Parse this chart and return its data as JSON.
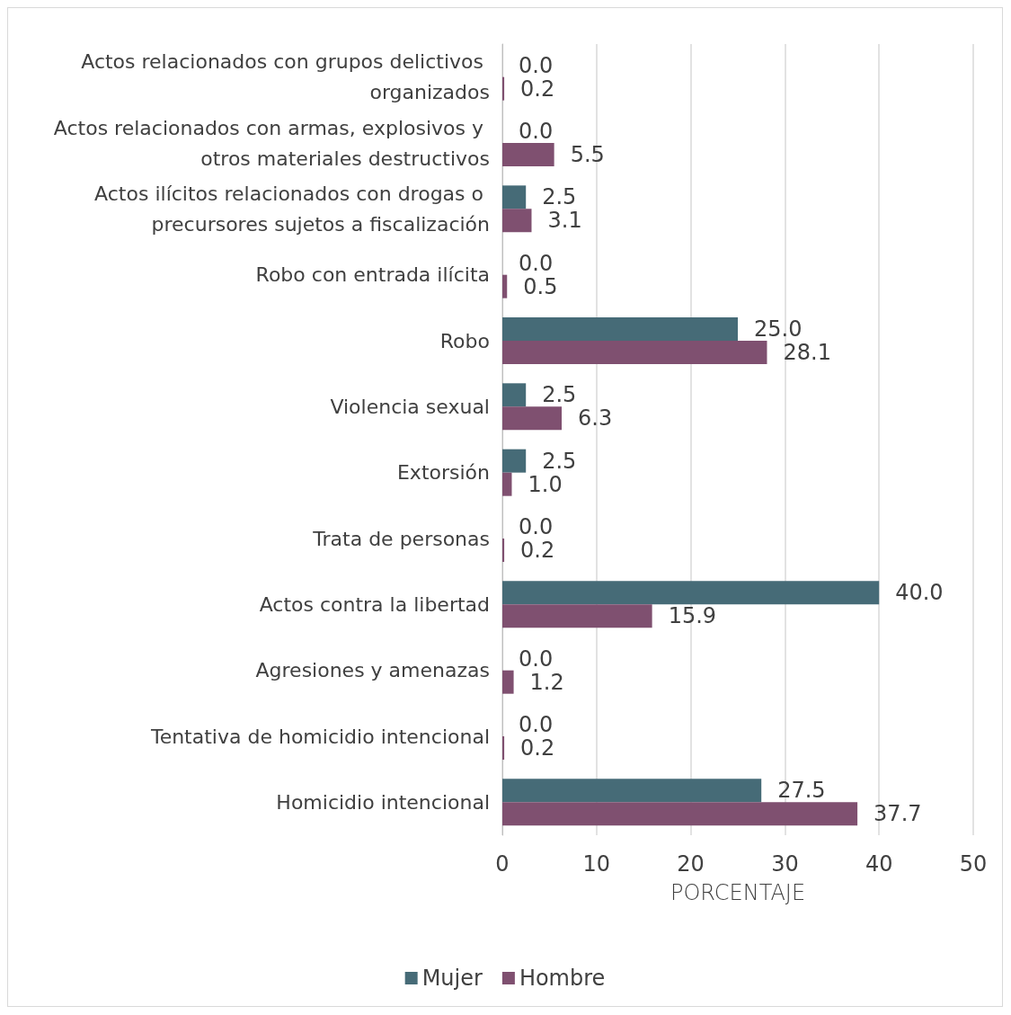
{
  "chart_data": {
    "type": "bar",
    "orientation": "horizontal",
    "xlabel": "PORCENTAJE",
    "categories": [
      "Actos relacionados con grupos delictivos organizados",
      "Actos relacionados con armas, explosivos y otros materiales destructivos",
      "Actos ilícitos relacionados con drogas o precursores sujetos a fiscalización",
      "Robo con entrada ilícita",
      "Robo",
      "Violencia sexual",
      "Extorsión",
      "Trata de personas",
      "Actos contra la libertad",
      "Agresiones y amenazas",
      "Tentativa de homicidio intencional",
      "Homicidio intencional"
    ],
    "series": [
      {
        "name": "Mujer",
        "color": "#466b77",
        "values": [
          0.0,
          0.0,
          2.5,
          0.0,
          25.0,
          2.5,
          2.5,
          0.0,
          40.0,
          0.0,
          0.0,
          27.5
        ],
        "value_labels": [
          "0.0",
          "0.0",
          "2.5",
          "0.0",
          "25.0",
          "2.5",
          "2.5",
          "0.0",
          "40.0",
          "0.0",
          "0.0",
          "27.5"
        ]
      },
      {
        "name": "Hombre",
        "color": "#7f5070",
        "values": [
          0.2,
          5.5,
          3.1,
          0.5,
          28.1,
          6.3,
          1.0,
          0.2,
          15.9,
          1.2,
          0.2,
          37.7
        ],
        "value_labels": [
          "0.2",
          "5.5",
          "3.1",
          "0.5",
          "28.1",
          "6.3",
          "1.0",
          "0.2",
          "15.9",
          "1.2",
          "0.2",
          "37.7"
        ]
      }
    ],
    "xlim": [
      0,
      50
    ],
    "xticks": [
      0,
      10,
      20,
      30,
      40,
      50
    ],
    "grid": "x",
    "legend": "bottom"
  }
}
